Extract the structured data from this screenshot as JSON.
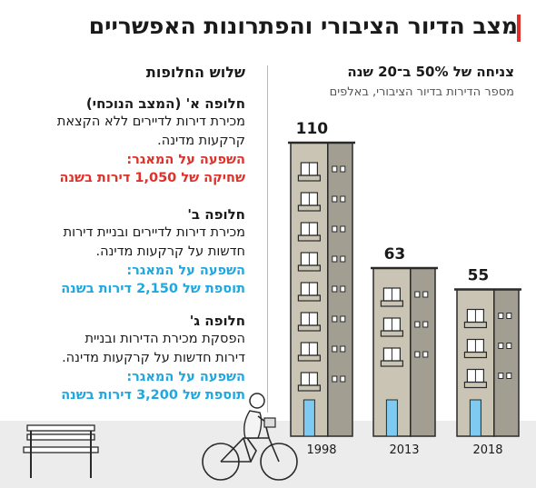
{
  "header": {
    "title": "מצב הדיור הציבורי והפתרונות האפשריים",
    "accent_color": "#e0302a"
  },
  "chart_panel": {
    "title": "צניחה של 50% ב־20 שנה",
    "subtitle": "מספר הדירות בדיור הציבורי, באלפים"
  },
  "chart_data": {
    "type": "bar",
    "categories": [
      "1998",
      "2013",
      "2018"
    ],
    "values": [
      110,
      63,
      55
    ],
    "data_labels": [
      "110",
      "63",
      "55"
    ],
    "value_unit": "thousands of apartments",
    "bar_style": "apartment-building-icons"
  },
  "alternatives": {
    "heading": "שלוש החלופות",
    "items": [
      {
        "name": "חלופה א'",
        "tag": "(המצב הנוכחי)",
        "desc_lines": [
          "מכירת דירות לדיירים ללא הקצאת",
          "קרקעות מדינה."
        ],
        "impact_label": "השפעה על המאגר:",
        "impact_value": "שחיקה של 1,050 דירות בשנה",
        "impact_color": "#e0302a"
      },
      {
        "name": "חלופה ב'",
        "tag": "",
        "desc_lines": [
          "מכירת דירות לדיירים ובניית דירות",
          "חדשות על קרקעות מדינה."
        ],
        "impact_label": "השפעה על המאגר:",
        "impact_value": "תוספת של 2,150 דירות בשנה",
        "impact_color": "#1fa7e0"
      },
      {
        "name": "חלופה ג'",
        "tag": "",
        "desc_lines": [
          "הפסקת מכירת הדירות ובניית",
          "דירות חדשות על קרקעות מדינה."
        ],
        "impact_label": "השפעה על המאגר:",
        "impact_value": "תוספת של 3,200 דירות בשנה",
        "impact_color": "#1fa7e0"
      }
    ]
  },
  "colors": {
    "building_left": "#c9c4b3",
    "building_right": "#a29f92",
    "building_outline": "#2a2a2a",
    "door": "#7fcaf0",
    "ground": "#ececec"
  },
  "decorations": {
    "bench": "bench-icon",
    "cyclist": "cyclist-icon"
  }
}
